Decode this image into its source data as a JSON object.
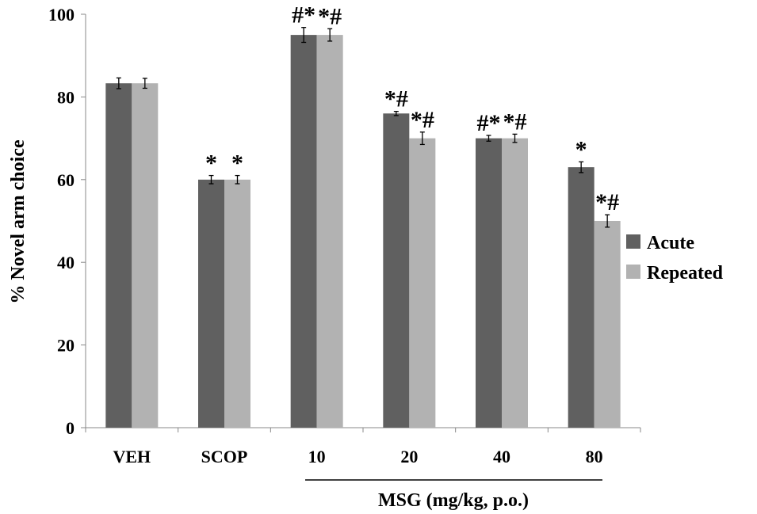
{
  "chart_data": {
    "type": "bar",
    "categories": [
      "VEH",
      "SCOP",
      "10",
      "20",
      "40",
      "80"
    ],
    "series": [
      {
        "name": "Acute",
        "color": "#606060",
        "values": [
          83.3,
          60,
          95,
          76,
          70,
          63
        ],
        "errors": [
          1.3,
          1.0,
          1.8,
          0.5,
          0.7,
          1.3
        ],
        "annotations": [
          "",
          "*",
          "#*",
          "*#",
          "#*",
          "*"
        ]
      },
      {
        "name": "Repeated",
        "color": "#b2b2b2",
        "values": [
          83.3,
          60,
          95,
          70,
          70,
          50
        ],
        "errors": [
          1.2,
          1.0,
          1.5,
          1.5,
          1.0,
          1.5
        ],
        "annotations": [
          "",
          "*",
          "*#",
          "*#",
          "*#",
          "*#"
        ]
      }
    ],
    "ylabel": "% Novel arm choice",
    "ylim": [
      0,
      100
    ],
    "yticks": [
      0,
      20,
      40,
      60,
      80,
      100
    ],
    "group_label": "MSG (mg/kg, p.o.)",
    "legend_position": "right",
    "grid": false
  }
}
